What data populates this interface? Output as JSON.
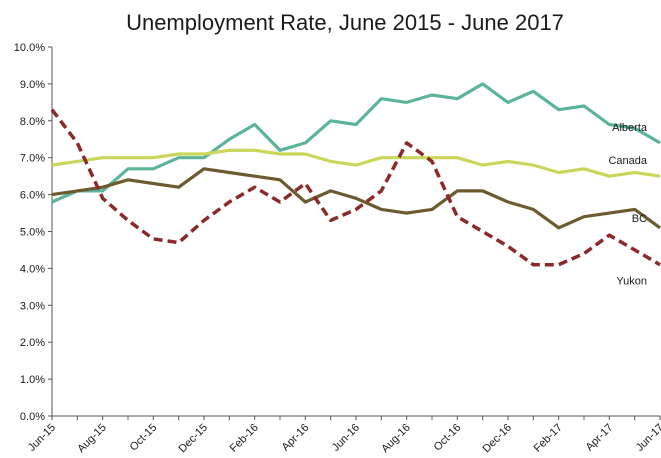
{
  "chart_data": {
    "type": "line",
    "title": "Unemployment Rate, June 2015 - June 2017",
    "xlabel": "",
    "ylabel": "",
    "ylim": [
      0,
      10
    ],
    "y_ticks": [
      "0.0%",
      "1.0%",
      "2.0%",
      "3.0%",
      "4.0%",
      "5.0%",
      "6.0%",
      "7.0%",
      "8.0%",
      "9.0%",
      "10.0%"
    ],
    "x_tick_labels": [
      "Jun-15",
      "Aug-15",
      "Oct-15",
      "Dec-15",
      "Feb-16",
      "Apr-16",
      "Jun-16",
      "Aug-16",
      "Oct-16",
      "Dec-16",
      "Feb-17",
      "Apr-17",
      "Jun-17"
    ],
    "months": [
      "Jun-15",
      "Jul-15",
      "Aug-15",
      "Sep-15",
      "Oct-15",
      "Nov-15",
      "Dec-15",
      "Jan-16",
      "Feb-16",
      "Mar-16",
      "Apr-16",
      "May-16",
      "Jun-16",
      "Jul-16",
      "Aug-16",
      "Sep-16",
      "Oct-16",
      "Nov-16",
      "Dec-16",
      "Jan-17",
      "Feb-17",
      "Mar-17",
      "Apr-17",
      "May-17",
      "Jun-17"
    ],
    "grid": false,
    "series": [
      {
        "name": "Alberta",
        "color": "#5bb49a",
        "dash": false,
        "values": [
          5.8,
          6.1,
          6.1,
          6.7,
          6.7,
          7.0,
          7.0,
          7.5,
          7.9,
          7.2,
          7.4,
          8.0,
          7.9,
          8.6,
          8.5,
          8.7,
          8.6,
          9.0,
          8.5,
          8.8,
          8.3,
          8.4,
          7.9,
          7.8,
          7.4
        ]
      },
      {
        "name": "Canada",
        "color": "#c9d65a",
        "dash": false,
        "values": [
          6.8,
          6.9,
          7.0,
          7.0,
          7.0,
          7.1,
          7.1,
          7.2,
          7.2,
          7.1,
          7.1,
          6.9,
          6.8,
          7.0,
          7.0,
          7.0,
          7.0,
          6.8,
          6.9,
          6.8,
          6.6,
          6.7,
          6.5,
          6.6,
          6.5
        ]
      },
      {
        "name": "BC",
        "color": "#6e5a2f",
        "dash": false,
        "values": [
          6.0,
          6.1,
          6.2,
          6.4,
          6.3,
          6.2,
          6.7,
          6.6,
          6.5,
          6.4,
          5.8,
          6.1,
          5.9,
          5.6,
          5.5,
          5.6,
          6.1,
          6.1,
          5.8,
          5.6,
          5.1,
          5.4,
          5.5,
          5.6,
          5.1
        ]
      },
      {
        "name": "Yukon",
        "color": "#8b2a2a",
        "dash": true,
        "values": [
          8.3,
          7.4,
          5.9,
          5.3,
          4.8,
          4.7,
          5.3,
          5.8,
          6.2,
          5.8,
          6.3,
          5.3,
          5.6,
          6.1,
          7.4,
          6.9,
          5.4,
          5.0,
          4.6,
          4.1,
          4.1,
          4.4,
          4.9,
          4.5,
          4.1
        ]
      }
    ]
  }
}
